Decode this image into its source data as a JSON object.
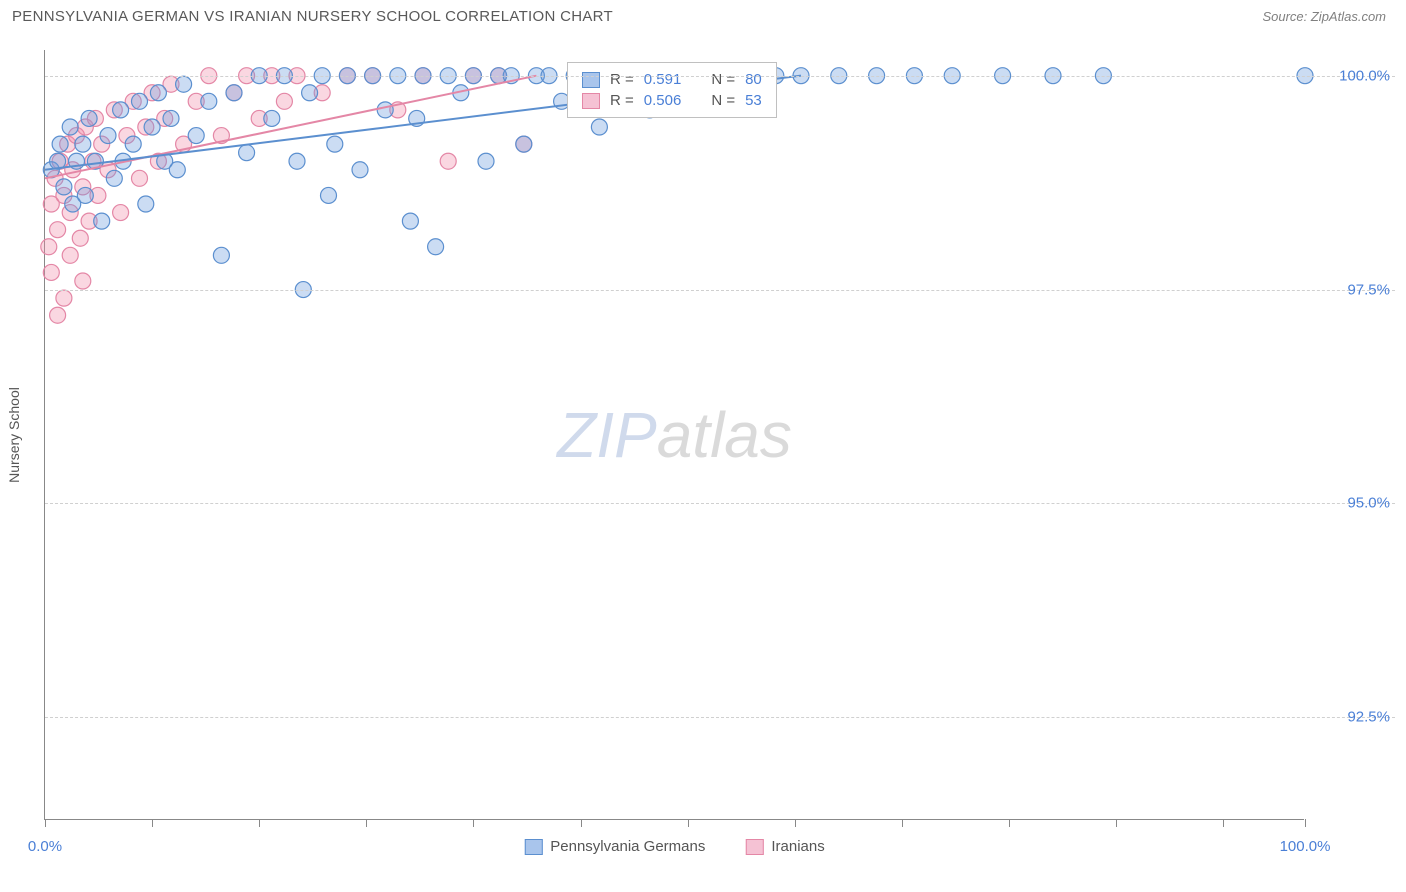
{
  "title": "PENNSYLVANIA GERMAN VS IRANIAN NURSERY SCHOOL CORRELATION CHART",
  "source_label": "Source: ZipAtlas.com",
  "y_axis_label": "Nursery School",
  "watermark_a": "ZIP",
  "watermark_b": "atlas",
  "chart": {
    "type": "scatter",
    "xlim": [
      0,
      100
    ],
    "ylim": [
      91.3,
      100.3
    ],
    "x_ticks": [
      0,
      8.5,
      17,
      25.5,
      34,
      42.5,
      51,
      59.5,
      68,
      76.5,
      85,
      93.5,
      100
    ],
    "x_tick_labels": {
      "0": "0.0%",
      "100": "100.0%"
    },
    "y_grid": [
      92.5,
      95.0,
      97.5,
      100.0
    ],
    "y_tick_labels": {
      "92.5": "92.5%",
      "95.0": "95.0%",
      "97.5": "97.5%",
      "100.0": "100.0%"
    },
    "background_color": "#ffffff",
    "grid_color": "#d0d0d0",
    "axis_color": "#888888",
    "label_color": "#4a7fd6",
    "marker_radius": 8,
    "marker_stroke_width": 1.2,
    "series": [
      {
        "name": "Pennsylvania Germans",
        "fill": "rgba(106,156,220,0.35)",
        "stroke": "#5b8fcf",
        "swatch_fill": "#a9c5ec",
        "swatch_border": "#5b8fcf",
        "R": 0.591,
        "N": 80,
        "trend": {
          "x1": 0,
          "y1": 98.9,
          "x2": 60,
          "y2": 100.0
        },
        "points": [
          [
            0.5,
            98.9
          ],
          [
            1,
            99.0
          ],
          [
            1.2,
            99.2
          ],
          [
            1.5,
            98.7
          ],
          [
            2,
            99.4
          ],
          [
            2.2,
            98.5
          ],
          [
            2.5,
            99.0
          ],
          [
            3,
            99.2
          ],
          [
            3.2,
            98.6
          ],
          [
            3.5,
            99.5
          ],
          [
            4,
            99.0
          ],
          [
            4.5,
            98.3
          ],
          [
            5,
            99.3
          ],
          [
            5.5,
            98.8
          ],
          [
            6,
            99.6
          ],
          [
            6.2,
            99.0
          ],
          [
            7,
            99.2
          ],
          [
            7.5,
            99.7
          ],
          [
            8,
            98.5
          ],
          [
            8.5,
            99.4
          ],
          [
            9,
            99.8
          ],
          [
            9.5,
            99.0
          ],
          [
            10,
            99.5
          ],
          [
            10.5,
            98.9
          ],
          [
            11,
            99.9
          ],
          [
            12,
            99.3
          ],
          [
            13,
            99.7
          ],
          [
            14,
            97.9
          ],
          [
            15,
            99.8
          ],
          [
            16,
            99.1
          ],
          [
            17,
            100.0
          ],
          [
            18,
            99.5
          ],
          [
            19,
            100.0
          ],
          [
            20,
            99.0
          ],
          [
            20.5,
            97.5
          ],
          [
            21,
            99.8
          ],
          [
            22,
            100.0
          ],
          [
            22.5,
            98.6
          ],
          [
            23,
            99.2
          ],
          [
            24,
            100.0
          ],
          [
            25,
            98.9
          ],
          [
            26,
            100.0
          ],
          [
            27,
            99.6
          ],
          [
            28,
            100.0
          ],
          [
            29,
            98.3
          ],
          [
            29.5,
            99.5
          ],
          [
            30,
            100.0
          ],
          [
            31,
            98.0
          ],
          [
            32,
            100.0
          ],
          [
            33,
            99.8
          ],
          [
            34,
            100.0
          ],
          [
            35,
            99.0
          ],
          [
            36,
            100.0
          ],
          [
            37,
            100.0
          ],
          [
            38,
            99.2
          ],
          [
            39,
            100.0
          ],
          [
            40,
            100.0
          ],
          [
            41,
            99.7
          ],
          [
            42,
            100.0
          ],
          [
            43,
            100.0
          ],
          [
            44,
            99.4
          ],
          [
            45,
            100.0
          ],
          [
            46,
            100.0
          ],
          [
            47,
            100.0
          ],
          [
            48,
            99.6
          ],
          [
            49,
            100.0
          ],
          [
            50,
            100.0
          ],
          [
            52,
            100.0
          ],
          [
            54,
            100.0
          ],
          [
            56,
            100.0
          ],
          [
            58,
            100.0
          ],
          [
            60,
            100.0
          ],
          [
            63,
            100.0
          ],
          [
            66,
            100.0
          ],
          [
            69,
            100.0
          ],
          [
            72,
            100.0
          ],
          [
            76,
            100.0
          ],
          [
            80,
            100.0
          ],
          [
            84,
            100.0
          ],
          [
            100,
            100.0
          ]
        ]
      },
      {
        "name": "Iranians",
        "fill": "rgba(240,140,170,0.35)",
        "stroke": "#e487a6",
        "swatch_fill": "#f5c2d4",
        "swatch_border": "#e487a6",
        "R": 0.506,
        "N": 53,
        "trend": {
          "x1": 0,
          "y1": 98.8,
          "x2": 39,
          "y2": 100.0
        },
        "points": [
          [
            0.3,
            98.0
          ],
          [
            0.5,
            98.5
          ],
          [
            0.8,
            98.8
          ],
          [
            1,
            98.2
          ],
          [
            1.2,
            99.0
          ],
          [
            1.5,
            98.6
          ],
          [
            1.8,
            99.2
          ],
          [
            2,
            98.4
          ],
          [
            2.2,
            98.9
          ],
          [
            2.5,
            99.3
          ],
          [
            2.8,
            98.1
          ],
          [
            3,
            98.7
          ],
          [
            3.2,
            99.4
          ],
          [
            3.5,
            98.3
          ],
          [
            3.8,
            99.0
          ],
          [
            4,
            99.5
          ],
          [
            4.2,
            98.6
          ],
          [
            4.5,
            99.2
          ],
          [
            5,
            98.9
          ],
          [
            5.5,
            99.6
          ],
          [
            6,
            98.4
          ],
          [
            6.5,
            99.3
          ],
          [
            7,
            99.7
          ],
          [
            7.5,
            98.8
          ],
          [
            8,
            99.4
          ],
          [
            8.5,
            99.8
          ],
          [
            9,
            99.0
          ],
          [
            9.5,
            99.5
          ],
          [
            10,
            99.9
          ],
          [
            11,
            99.2
          ],
          [
            12,
            99.7
          ],
          [
            13,
            100.0
          ],
          [
            14,
            99.3
          ],
          [
            15,
            99.8
          ],
          [
            16,
            100.0
          ],
          [
            17,
            99.5
          ],
          [
            18,
            100.0
          ],
          [
            19,
            99.7
          ],
          [
            20,
            100.0
          ],
          [
            22,
            99.8
          ],
          [
            24,
            100.0
          ],
          [
            26,
            100.0
          ],
          [
            28,
            99.6
          ],
          [
            30,
            100.0
          ],
          [
            32,
            99.0
          ],
          [
            34,
            100.0
          ],
          [
            36,
            100.0
          ],
          [
            38,
            99.2
          ],
          [
            1,
            97.2
          ],
          [
            0.5,
            97.7
          ],
          [
            2,
            97.9
          ],
          [
            3,
            97.6
          ],
          [
            1.5,
            97.4
          ]
        ]
      }
    ]
  },
  "legend_box": {
    "row1": {
      "r_label": "R =",
      "r_value": "0.591",
      "n_label": "N =",
      "n_value": "80"
    },
    "row2": {
      "r_label": "R =",
      "r_value": "0.506",
      "n_label": "N =",
      "n_value": "53"
    }
  },
  "bottom_legend": {
    "item1": "Pennsylvania Germans",
    "item2": "Iranians"
  }
}
